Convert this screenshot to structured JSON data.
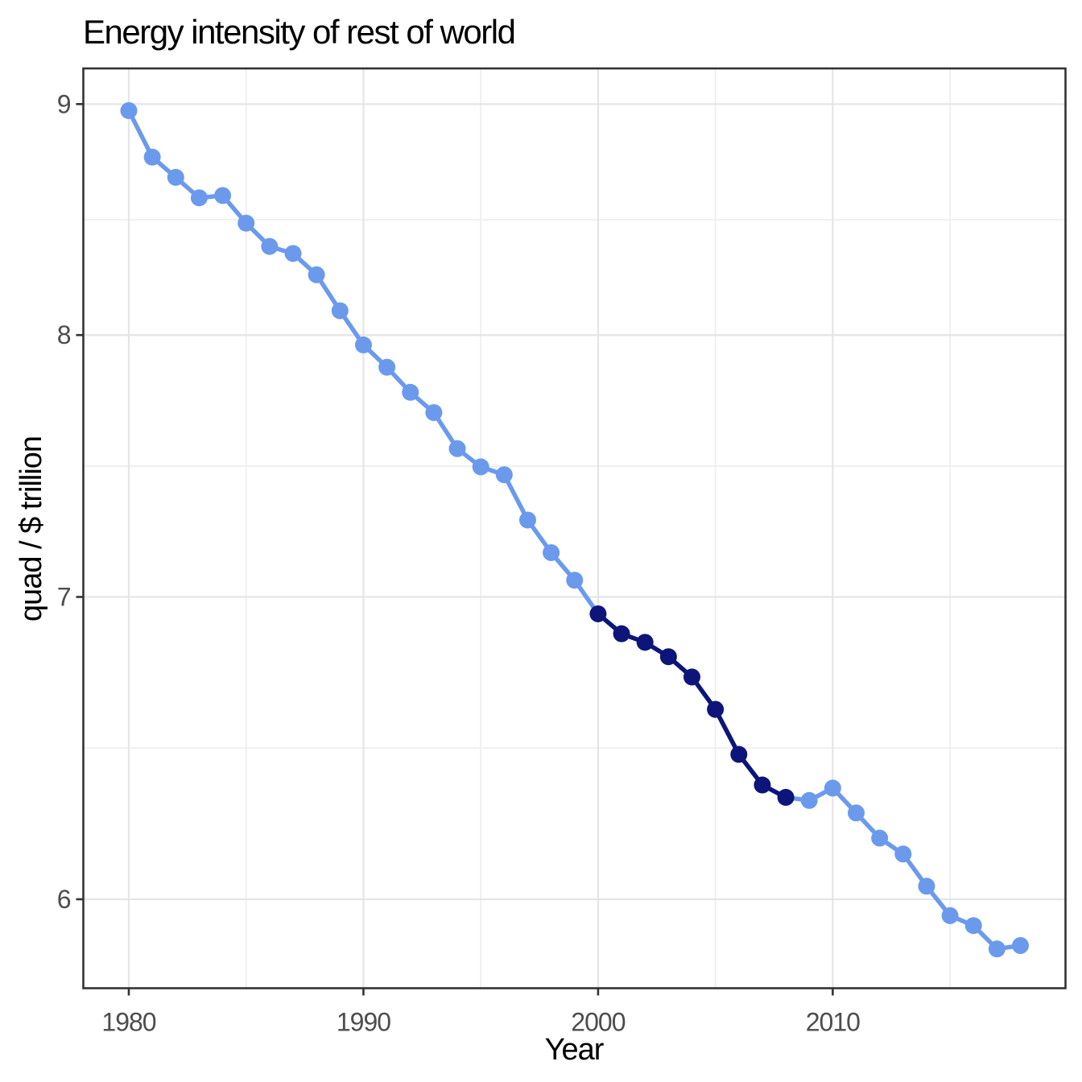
{
  "page": {
    "background": "#FFFFFF"
  },
  "chart_data": {
    "type": "line",
    "title": "Energy intensity of rest of world",
    "xlabel": "Year",
    "ylabel": "quad / $ trillion",
    "y_scale": "log10",
    "grid": true,
    "legend": "none",
    "marker": "point",
    "x": [
      1980,
      1981,
      1982,
      1983,
      1984,
      1985,
      1986,
      1987,
      1988,
      1989,
      1990,
      1991,
      1992,
      1993,
      1994,
      1995,
      1996,
      1997,
      1998,
      1999,
      2000,
      2001,
      2002,
      2003,
      2004,
      2005,
      2006,
      2007,
      2008,
      2009,
      2010,
      2011,
      2012,
      2013,
      2014,
      2015,
      2016,
      2017,
      2018
    ],
    "series": [
      {
        "name": "rest-of-world-energy-intensity",
        "color": "#6B9AED",
        "values": [
          8.97,
          8.76,
          8.67,
          8.58,
          8.59,
          8.47,
          8.37,
          8.34,
          8.25,
          8.1,
          7.96,
          7.87,
          7.77,
          7.69,
          7.55,
          7.48,
          7.45,
          7.28,
          7.16,
          7.06,
          6.94,
          6.87,
          6.84,
          6.79,
          6.72,
          6.61,
          6.46,
          6.36,
          6.32,
          6.31,
          6.35,
          6.27,
          6.19,
          6.14,
          6.04,
          5.95,
          5.92,
          5.85,
          5.86
        ]
      }
    ],
    "highlight": {
      "name": "highlight-2000-2008",
      "color": "#0D157A",
      "from_year": 2000,
      "to_year": 2008
    },
    "x_ticks": [
      1980,
      1990,
      2000,
      2010
    ],
    "x_minor_ticks": [
      1985,
      1995,
      2005,
      2015
    ],
    "y_ticks": [
      9,
      8,
      7,
      6
    ],
    "y_minor_ticks": [
      8.485,
      7.483,
      6.481
    ],
    "xlim": [
      1978.1,
      2019.9
    ],
    "ylim": [
      5.73,
      9.17
    ],
    "styles": {
      "grid_major": "#E5E5E5",
      "grid_minor": "#F0F0F0",
      "panel_border": "#333333",
      "tick_color": "#333333",
      "tick_label_color": "#4D4D4D",
      "title_color": "#000000"
    }
  }
}
